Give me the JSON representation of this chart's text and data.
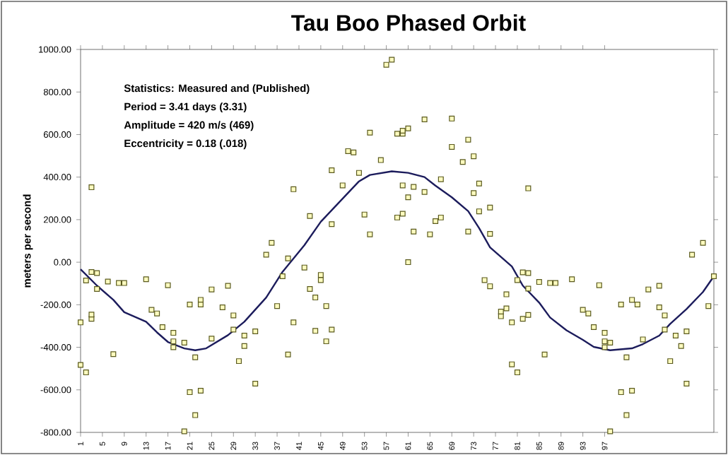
{
  "chart_data": {
    "type": "scatter",
    "title": "Tau Boo Phased Orbit",
    "ylabel": "meters per second",
    "annotations": [
      "Statistics: Measured and (Published)",
      "Period = 3.41 days (3.31)",
      "Amplitude = 420 m/s (469)",
      "Eccentricity = 0.18 (.018)"
    ],
    "xlim": [
      1,
      117
    ],
    "ylim": [
      -800,
      1000
    ],
    "xticks": [
      1,
      5,
      9,
      13,
      17,
      21,
      25,
      29,
      33,
      37,
      41,
      45,
      49,
      53,
      57,
      61,
      65,
      69,
      73,
      77,
      81,
      85,
      89,
      93,
      97
    ],
    "yticks": [
      {
        "value": -800,
        "label": "-800.00"
      },
      {
        "value": -600,
        "label": "-600.00"
      },
      {
        "value": -400,
        "label": "-400.00"
      },
      {
        "value": -200,
        "label": "-200.00"
      },
      {
        "value": 0,
        "label": "0.00"
      },
      {
        "value": 200,
        "label": "200.00"
      },
      {
        "value": 400,
        "label": "400.00"
      },
      {
        "value": 600,
        "label": "600.00"
      },
      {
        "value": 800,
        "label": "800.00"
      },
      {
        "value": 1000,
        "label": "1000.00"
      }
    ],
    "grid": false,
    "series": [
      {
        "marker": "square",
        "color": "#5a5a1e",
        "x": [
          1,
          1,
          2,
          2,
          3,
          3,
          3,
          3,
          4,
          4,
          6,
          7,
          8,
          9,
          13,
          14,
          15,
          16,
          17,
          18,
          18,
          18,
          20,
          21,
          22,
          21,
          23,
          23,
          23,
          25,
          25,
          27,
          28,
          29,
          29,
          30,
          31,
          31,
          33,
          33,
          35,
          36,
          37,
          38,
          39,
          39,
          40,
          40,
          42,
          43,
          43,
          44,
          44,
          45,
          45,
          46,
          46,
          47,
          47,
          47,
          49,
          50,
          51,
          52,
          53,
          54,
          22,
          20,
          57,
          58,
          54,
          56,
          59,
          60,
          60,
          61,
          64,
          69,
          60,
          61,
          62,
          64,
          67,
          59,
          60,
          62,
          65,
          66,
          67,
          61,
          69,
          72,
          71,
          73,
          74,
          73,
          74,
          76,
          72,
          76,
          83,
          75,
          76,
          79,
          81,
          82,
          83,
          83,
          85,
          87,
          88,
          78,
          78,
          79,
          80,
          82,
          83,
          80,
          81,
          86,
          91,
          96,
          93,
          94,
          95,
          97,
          97,
          97,
          98,
          100,
          101,
          100,
          102,
          102,
          103,
          104,
          105,
          107,
          107,
          108,
          108,
          109,
          110,
          111,
          112,
          112,
          113,
          115,
          116,
          117,
          101,
          98
        ],
        "values": [
          -283,
          -483,
          -518,
          -86,
          -46,
          -266,
          352,
          -246,
          -51,
          -126,
          -91,
          -432,
          -98,
          -98,
          -80,
          -224,
          -241,
          -305,
          -108,
          -332,
          -372,
          -400,
          -378,
          -199,
          -447,
          -611,
          -604,
          -177,
          -199,
          -359,
          -128,
          -212,
          -111,
          -250,
          -317,
          -465,
          -345,
          -394,
          -325,
          -571,
          35,
          91,
          -206,
          -66,
          18,
          -434,
          343,
          -283,
          -25,
          -126,
          217,
          -166,
          -323,
          -60,
          -84,
          -206,
          -372,
          -317,
          179,
          432,
          361,
          522,
          516,
          420,
          224,
          131,
          -719,
          -795,
          928,
          952,
          609,
          480,
          604,
          604,
          618,
          629,
          671,
          675,
          361,
          305,
          354,
          330,
          390,
          210,
          228,
          144,
          131,
          193,
          210,
          0,
          542,
          576,
          471,
          498,
          370,
          325,
          239,
          257,
          144,
          133,
          347,
          -84,
          -113,
          -151,
          -84,
          -48,
          -51,
          -124,
          -93,
          -98,
          -98,
          -254,
          -232,
          -217,
          -283,
          -266,
          -248,
          -480,
          -518,
          -434,
          -80,
          -108,
          -224,
          -241,
          -305,
          -332,
          -372,
          -400,
          -378,
          -199,
          -447,
          -611,
          -604,
          -177,
          -199,
          -363,
          -128,
          -212,
          -111,
          -250,
          -317,
          -465,
          -345,
          -394,
          -325,
          -571,
          35,
          91,
          -206,
          -66,
          -719,
          -795
        ]
      },
      {
        "type": "line",
        "marker": "none",
        "line_style": "solid",
        "color": "#1c1c5c",
        "x": [
          1,
          4,
          7,
          9,
          13,
          15,
          17,
          20,
          22,
          24,
          28,
          31,
          35,
          38,
          42,
          45,
          49,
          52,
          54,
          58,
          61,
          64,
          66,
          69,
          72,
          74,
          76,
          80,
          82,
          85,
          87,
          90,
          93,
          95,
          98,
          102,
          104,
          107,
          109,
          112,
          115,
          117
        ],
        "values": [
          -33,
          -110,
          -177,
          -235,
          -280,
          -330,
          -375,
          -405,
          -414,
          -405,
          -343,
          -280,
          -166,
          -45,
          80,
          190,
          299,
          380,
          410,
          427,
          420,
          400,
          360,
          305,
          240,
          160,
          70,
          -20,
          -110,
          -190,
          -260,
          -320,
          -365,
          -398,
          -414,
          -405,
          -385,
          -345,
          -290,
          -220,
          -140,
          -66
        ]
      }
    ]
  }
}
